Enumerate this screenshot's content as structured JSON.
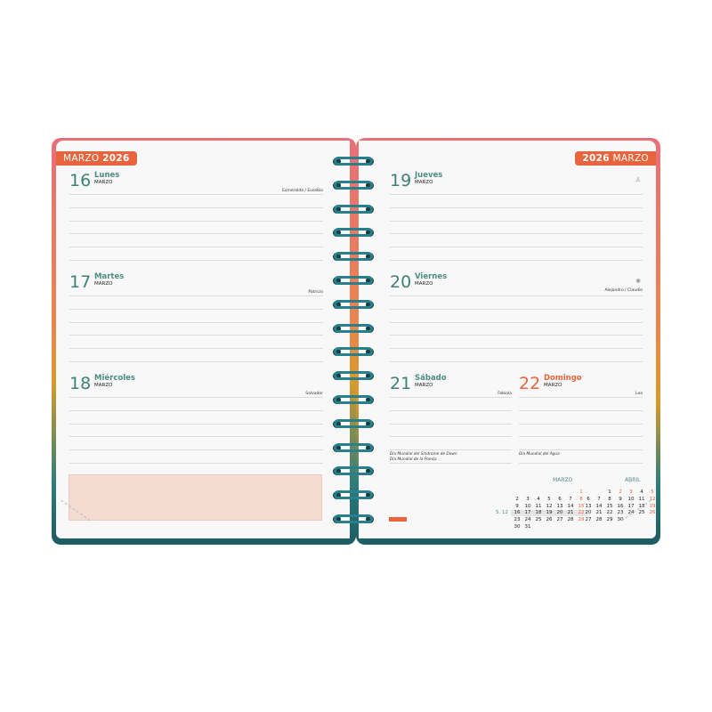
{
  "left_page": {
    "tab": {
      "month": "MARZO",
      "year": "2026"
    },
    "days": [
      {
        "num": "16",
        "name": "Lunes",
        "month": "MARZO",
        "saint": "Esmeralda / Eusebio"
      },
      {
        "num": "17",
        "name": "Martes",
        "month": "MARZO",
        "saint": "Patricio"
      },
      {
        "num": "18",
        "name": "Miércoles",
        "month": "MARZO",
        "saint": "Salvador"
      }
    ]
  },
  "right_page": {
    "tab": {
      "year": "2026",
      "month": "MARZO"
    },
    "days": [
      {
        "num": "19",
        "name": "Jueves",
        "month": "MARZO",
        "saint": "",
        "icon": "person-icon"
      },
      {
        "num": "20",
        "name": "Viernes",
        "month": "MARZO",
        "saint": "Alejandro / Claudio",
        "icon": "sun-icon"
      },
      {
        "num": "21",
        "name": "Sábado",
        "month": "MARZO",
        "saint": "Fabiola",
        "notes": [
          "Día Mundial del Síndrome de Down",
          "Día Mundial de la Poesía"
        ]
      },
      {
        "num": "22",
        "name": "Domingo",
        "month": "MARZO",
        "saint": "Lea",
        "notes": [
          "Día Mundial del Agua"
        ]
      }
    ],
    "week_label": "S. 12",
    "calendars": [
      {
        "month": "MARZO",
        "weeks": [
          [
            "",
            "",
            "",
            "",
            "",
            "",
            "1"
          ],
          [
            "2",
            "3",
            "4",
            "5",
            "6",
            "7",
            "8"
          ],
          [
            "9",
            "10",
            "11",
            "12",
            "13",
            "14",
            "15"
          ],
          [
            "16",
            "17",
            "18",
            "19",
            "20",
            "21",
            "22"
          ],
          [
            "23",
            "24",
            "25",
            "26",
            "27",
            "28",
            "29"
          ],
          [
            "30",
            "31",
            "",
            "",
            "",
            "",
            ""
          ]
        ],
        "red": [
          "1",
          "8",
          "15",
          "22",
          "29"
        ],
        "highlight_week": 3
      },
      {
        "month": "ABRIL",
        "weeks": [
          [
            "",
            "",
            "1",
            "2",
            "3",
            "4",
            "5"
          ],
          [
            "6",
            "7",
            "8",
            "9",
            "10",
            "11",
            "12"
          ],
          [
            "13",
            "14",
            "15",
            "16",
            "17",
            "18",
            "19"
          ],
          [
            "20",
            "21",
            "22",
            "23",
            "24",
            "25",
            "26"
          ],
          [
            "27",
            "28",
            "29",
            "30",
            "",
            "",
            ""
          ]
        ],
        "red": [
          "2",
          "3",
          "5",
          "12",
          "19",
          "26"
        ]
      }
    ]
  },
  "colors": {
    "accent": "#e8643c",
    "teal": "#3f8177",
    "spiral": "#2a7f8c",
    "memo": "#f5dcd3"
  }
}
